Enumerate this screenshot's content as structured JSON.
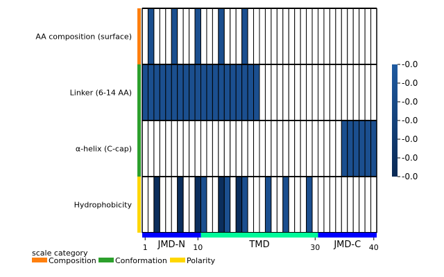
{
  "chart_data": {
    "type": "heatmap",
    "title": "",
    "xlabel": "",
    "ylabel": "",
    "rows": [
      "AA composition (surface)",
      "Linker (6-14 AA)",
      "α-helix (C-cap)",
      "Hydrophobicity"
    ],
    "row_categories": [
      "Composition",
      "Conformation",
      "Conformation",
      "Polarity"
    ],
    "x_positions": [
      1,
      2,
      3,
      4,
      5,
      6,
      7,
      8,
      9,
      10,
      11,
      12,
      13,
      14,
      15,
      16,
      17,
      18,
      19,
      20,
      21,
      22,
      23,
      24,
      25,
      26,
      27,
      28,
      29,
      30,
      31,
      32,
      33,
      34,
      35,
      36,
      37,
      38,
      39,
      40
    ],
    "x_tick_labels": [
      "1",
      "10",
      "30",
      "40"
    ],
    "x_ticks": [
      1,
      10,
      30,
      40
    ],
    "values": [
      [
        0,
        1,
        0,
        0,
        0,
        1,
        0,
        0,
        0,
        1,
        0,
        0,
        0,
        1,
        0,
        0,
        0,
        1,
        0,
        0,
        0,
        0,
        0,
        0,
        0,
        0,
        0,
        0,
        0,
        0,
        0,
        0,
        0,
        0,
        0,
        0,
        0,
        0,
        0,
        0
      ],
      [
        1,
        1,
        1,
        1,
        1,
        1,
        1,
        1,
        1,
        1,
        1,
        1,
        1,
        1,
        1,
        1,
        1,
        1,
        1,
        1,
        0,
        0,
        0,
        0,
        0,
        0,
        0,
        0,
        0,
        0,
        0,
        0,
        0,
        0,
        0,
        0,
        0,
        0,
        0,
        0
      ],
      [
        0,
        0,
        0,
        0,
        0,
        0,
        0,
        0,
        0,
        0,
        0,
        0,
        0,
        0,
        0,
        0,
        0,
        0,
        0,
        0,
        0,
        0,
        0,
        0,
        0,
        0,
        0,
        0,
        0,
        0,
        0,
        0,
        0,
        0,
        1,
        1,
        1,
        1,
        1,
        1
      ],
      [
        0,
        0,
        2,
        0,
        0,
        0,
        2,
        0,
        0,
        2,
        1,
        0,
        0,
        2,
        1,
        0,
        2,
        1,
        0,
        0,
        0,
        1,
        0,
        0,
        1,
        0,
        0,
        0,
        1,
        0,
        0,
        0,
        0,
        0,
        0,
        0,
        0,
        0,
        0,
        0
      ]
    ],
    "value_colors": {
      "0": "#ffffff",
      "1": "#1b4f8f",
      "2": "#0b2e5c"
    },
    "colorbar": {
      "tick_labels": [
        "-0.0",
        "-0.0",
        "-0.0",
        "-0.0",
        "-0.0",
        "-0.0",
        "-0.0"
      ],
      "color_top": "#1e5aa0",
      "color_bottom": "#0a2a55"
    },
    "regions": [
      {
        "label": "JMD-N",
        "start": 1,
        "end": 10,
        "color": "#0000ff"
      },
      {
        "label": "TMD",
        "start": 11,
        "end": 30,
        "color": "#00fa9a"
      },
      {
        "label": "JMD-C",
        "start": 31,
        "end": 40,
        "color": "#0000ff"
      }
    ],
    "legend": {
      "title": "scale category",
      "placement": "bottom-left",
      "items": [
        {
          "label": "Composition",
          "color": "#ff7f0e"
        },
        {
          "label": "Conformation",
          "color": "#2ca02c"
        },
        {
          "label": "Polarity",
          "color": "#ffd700"
        }
      ]
    }
  }
}
